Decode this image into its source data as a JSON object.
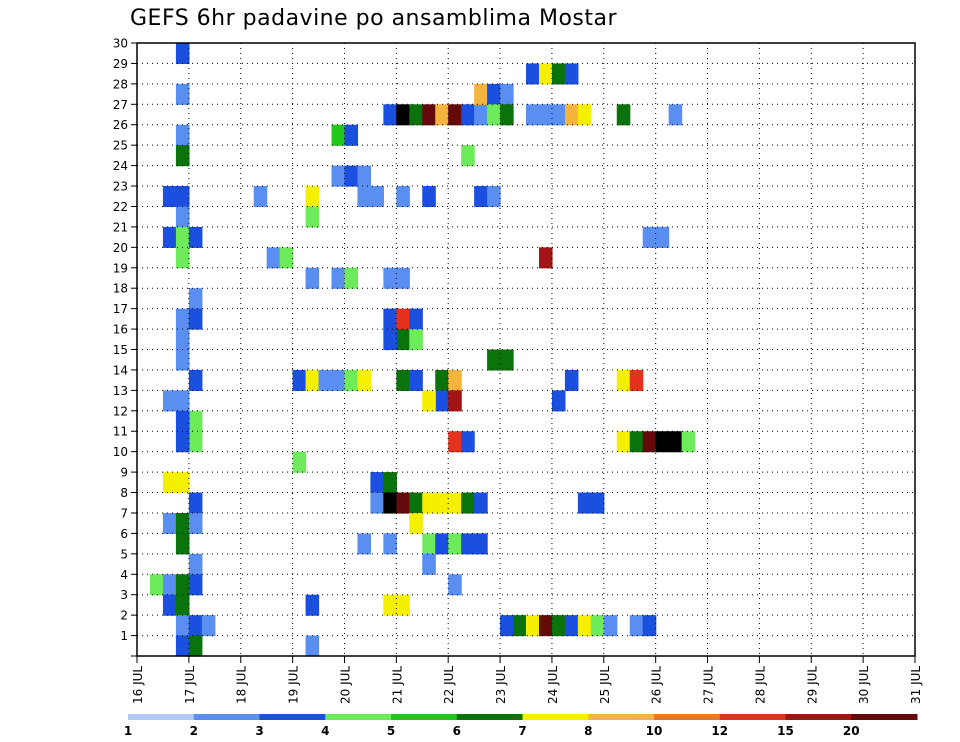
{
  "chart_data": {
    "type": "heatmap",
    "title": "GEFS 6hr padavine po ansamblima Mostar",
    "xlabel": "",
    "ylabel": "",
    "x_ticks": [
      "16 JUL",
      "17 JUL",
      "18 JUL",
      "19 JUL",
      "20 JUL",
      "21 JUL",
      "22 JUL",
      "23 JUL",
      "24 JUL",
      "25 JUL",
      "26 JUL",
      "27 JUL",
      "28 JUL",
      "29 JUL",
      "30 JUL",
      "31 JUL"
    ],
    "y_ticks": [
      1,
      2,
      3,
      4,
      5,
      6,
      7,
      8,
      9,
      10,
      11,
      12,
      13,
      14,
      15,
      16,
      17,
      18,
      19,
      20,
      21,
      22,
      23,
      24,
      25,
      26,
      27,
      28,
      29,
      30
    ],
    "xlim": [
      0,
      60
    ],
    "ylim": [
      0,
      30
    ],
    "grid": true,
    "legend_position": "bottom",
    "color_scale": {
      "labels": [
        "1",
        "2",
        "3",
        "4",
        "5",
        "6",
        "7",
        "8",
        "10",
        "12",
        "15",
        "20"
      ],
      "colors": [
        "#b4c8f5",
        "#5a8ef0",
        "#1a4fe0",
        "#6eeb5a",
        "#22c71c",
        "#0b730b",
        "#f5f000",
        "#f5b43c",
        "#f57814",
        "#e5321e",
        "#a51414",
        "#640a0a"
      ]
    },
    "cells": [
      [
        3,
        29,
        2
      ],
      [
        3,
        27,
        1
      ],
      [
        3,
        25,
        1
      ],
      [
        3,
        24,
        5
      ],
      [
        2,
        22,
        2
      ],
      [
        3,
        22,
        2
      ],
      [
        3,
        21,
        1
      ],
      [
        2,
        20,
        2
      ],
      [
        3,
        20,
        3
      ],
      [
        4,
        20,
        2
      ],
      [
        3,
        19,
        3
      ],
      [
        4,
        17,
        1
      ],
      [
        3,
        16,
        1
      ],
      [
        4,
        16,
        2
      ],
      [
        3,
        15,
        1
      ],
      [
        3,
        14,
        1
      ],
      [
        4,
        13,
        2
      ],
      [
        2,
        12,
        1
      ],
      [
        3,
        12,
        1
      ],
      [
        4,
        11,
        3
      ],
      [
        3,
        11,
        2
      ],
      [
        4,
        10,
        3
      ],
      [
        3,
        10,
        2
      ],
      [
        2,
        8,
        6
      ],
      [
        3,
        8,
        6
      ],
      [
        4,
        7,
        2
      ],
      [
        2,
        6,
        1
      ],
      [
        3,
        6,
        5
      ],
      [
        4,
        6,
        1
      ],
      [
        3,
        5,
        5
      ],
      [
        4,
        4,
        1
      ],
      [
        1,
        3,
        3
      ],
      [
        2,
        3,
        1
      ],
      [
        3,
        3,
        5
      ],
      [
        4,
        3,
        2
      ],
      [
        2,
        2,
        2
      ],
      [
        3,
        2,
        5
      ],
      [
        3,
        1,
        1
      ],
      [
        4,
        1,
        2
      ],
      [
        5,
        1,
        1
      ],
      [
        3,
        0,
        2
      ],
      [
        4,
        0,
        5
      ],
      [
        9,
        22,
        1
      ],
      [
        10,
        19,
        1
      ],
      [
        11,
        19,
        3
      ],
      [
        13,
        22,
        6
      ],
      [
        13,
        21,
        3
      ],
      [
        13,
        18,
        1
      ],
      [
        13,
        2,
        2
      ],
      [
        13,
        0,
        1
      ],
      [
        12,
        9,
        3
      ],
      [
        12,
        13,
        2
      ],
      [
        13,
        13,
        6
      ],
      [
        14,
        13,
        1
      ],
      [
        15,
        13,
        1
      ],
      [
        16,
        13,
        3
      ],
      [
        17,
        13,
        6
      ],
      [
        15,
        25,
        4
      ],
      [
        16,
        25,
        2
      ],
      [
        15,
        23,
        1
      ],
      [
        16,
        23,
        2
      ],
      [
        17,
        23,
        1
      ],
      [
        17,
        22,
        1
      ],
      [
        18,
        22,
        1
      ],
      [
        15,
        18,
        1
      ],
      [
        16,
        18,
        3
      ],
      [
        19,
        26,
        2
      ],
      [
        20,
        26,
        12
      ],
      [
        21,
        26,
        5
      ],
      [
        22,
        26,
        11
      ],
      [
        23,
        26,
        7
      ],
      [
        24,
        26,
        11
      ],
      [
        25,
        26,
        2
      ],
      [
        26,
        26,
        1
      ],
      [
        20,
        22,
        1
      ],
      [
        22,
        22,
        2
      ],
      [
        26,
        22,
        2
      ],
      [
        27,
        22,
        1
      ],
      [
        19,
        18,
        1
      ],
      [
        20,
        18,
        1
      ],
      [
        19,
        16,
        2
      ],
      [
        20,
        16,
        9
      ],
      [
        21,
        16,
        2
      ],
      [
        20,
        15,
        5
      ],
      [
        21,
        15,
        3
      ],
      [
        19,
        15,
        2
      ],
      [
        20,
        13,
        5
      ],
      [
        21,
        13,
        2
      ],
      [
        23,
        13,
        5
      ],
      [
        24,
        13,
        7
      ],
      [
        23,
        12,
        2
      ],
      [
        24,
        12,
        10
      ],
      [
        22,
        12,
        6
      ],
      [
        18,
        8,
        2
      ],
      [
        19,
        8,
        5
      ],
      [
        18,
        7,
        1
      ],
      [
        19,
        7,
        12
      ],
      [
        20,
        7,
        11
      ],
      [
        21,
        7,
        5
      ],
      [
        22,
        7,
        6
      ],
      [
        23,
        7,
        6
      ],
      [
        24,
        7,
        6
      ],
      [
        25,
        7,
        5
      ],
      [
        26,
        7,
        2
      ],
      [
        21,
        6,
        6
      ],
      [
        17,
        5,
        1
      ],
      [
        19,
        5,
        1
      ],
      [
        22,
        5,
        3
      ],
      [
        23,
        5,
        2
      ],
      [
        24,
        5,
        3
      ],
      [
        25,
        5,
        2
      ],
      [
        26,
        5,
        2
      ],
      [
        22,
        4,
        1
      ],
      [
        19,
        2,
        6
      ],
      [
        20,
        2,
        6
      ],
      [
        24,
        10,
        9
      ],
      [
        25,
        10,
        2
      ],
      [
        24,
        3,
        1
      ],
      [
        25,
        24,
        3
      ],
      [
        26,
        27,
        7
      ],
      [
        27,
        27,
        2
      ],
      [
        28,
        27,
        1
      ],
      [
        27,
        26,
        3
      ],
      [
        28,
        26,
        5
      ],
      [
        30,
        26,
        1
      ],
      [
        31,
        26,
        1
      ],
      [
        32,
        26,
        1
      ],
      [
        33,
        26,
        7
      ],
      [
        34,
        26,
        6
      ],
      [
        37,
        26,
        5
      ],
      [
        41,
        26,
        1
      ],
      [
        30,
        28,
        2
      ],
      [
        31,
        28,
        6
      ],
      [
        32,
        28,
        5
      ],
      [
        33,
        28,
        2
      ],
      [
        27,
        14,
        5
      ],
      [
        28,
        14,
        5
      ],
      [
        31,
        19,
        10
      ],
      [
        32,
        12,
        2
      ],
      [
        33,
        13,
        2
      ],
      [
        37,
        13,
        6
      ],
      [
        38,
        13,
        9
      ],
      [
        37,
        10,
        6
      ],
      [
        38,
        10,
        5
      ],
      [
        39,
        10,
        11
      ],
      [
        40,
        10,
        12
      ],
      [
        41,
        10,
        12
      ],
      [
        42,
        10,
        3
      ],
      [
        34,
        7,
        2
      ],
      [
        35,
        7,
        2
      ],
      [
        28,
        1,
        2
      ],
      [
        29,
        1,
        5
      ],
      [
        30,
        1,
        6
      ],
      [
        31,
        1,
        11
      ],
      [
        32,
        1,
        5
      ],
      [
        33,
        1,
        2
      ],
      [
        34,
        1,
        6
      ],
      [
        35,
        1,
        3
      ],
      [
        36,
        1,
        1
      ],
      [
        38,
        1,
        1
      ],
      [
        39,
        1,
        2
      ],
      [
        39,
        20,
        1
      ],
      [
        40,
        20,
        1
      ]
    ]
  }
}
